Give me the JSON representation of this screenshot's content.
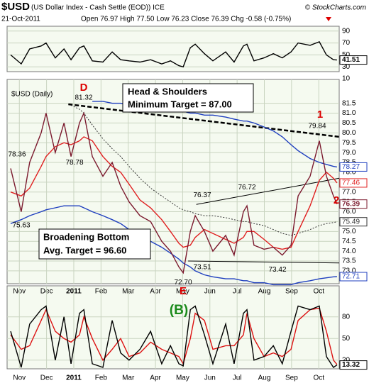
{
  "header": {
    "symbol": "$USD",
    "name": "(US Dollar Index - Cash Settle (EOD)) ICE",
    "credit": "© StockCharts.com",
    "date": "21-Oct-2011",
    "quote": "Open 76.97 High 77.50 Low 76.23 Close 76.39 Chg -0.58 (-0.75%)"
  },
  "chart_data": [
    {
      "type": "line",
      "xlim": [
        -0.45,
        11.75
      ],
      "ylim": [
        22,
        98
      ],
      "yticks": [
        90,
        70,
        50,
        30,
        10
      ],
      "grid": true,
      "x": [
        -0.32,
        0.07,
        0.38,
        0.8,
        0.98,
        1.32,
        1.64,
        1.9,
        2.21,
        2.37,
        2.68,
        3.07,
        3.41,
        3.72,
        4.03,
        4.43,
        4.82,
        5.23,
        5.55,
        5.86,
        6.02,
        6.28,
        6.46,
        6.8,
        7.11,
        7.58,
        7.89,
        8.23,
        8.36,
        8.62,
        8.99,
        9.33,
        9.66,
        9.98,
        10.24,
        10.68,
        11.02,
        11.28,
        11.54,
        11.67
      ],
      "series": [
        {
          "color": "#000000",
          "style": "solid",
          "end_label": true,
          "values": [
            50,
            35,
            60,
            65,
            70,
            45,
            60,
            42,
            62,
            65,
            40,
            38,
            55,
            42,
            40,
            38,
            42,
            35,
            40,
            32,
            30,
            62,
            68,
            52,
            40,
            55,
            38,
            65,
            68,
            40,
            45,
            52,
            45,
            55,
            70,
            66,
            72,
            50,
            42,
            41.51
          ]
        }
      ]
    },
    {
      "type": "line",
      "title": "$USD (Daily)",
      "xlim": [
        -0.45,
        11.75
      ],
      "ylim": [
        72.35,
        82.71
      ],
      "grid": true,
      "yticks": [
        {
          "value": 73,
          "label": "73.0"
        },
        73.5,
        {
          "value": 74,
          "label": "74.0"
        },
        74.5,
        {
          "value": 75,
          "label": "75.0"
        },
        75.5,
        {
          "value": 76,
          "label": "76.0"
        },
        76.5,
        {
          "value": 77,
          "label": "77.0"
        },
        77.5,
        {
          "value": 78,
          "label": "78.0"
        },
        78.5,
        {
          "value": 79,
          "label": "79.0"
        },
        79.5,
        {
          "value": 80,
          "label": "80.0"
        },
        80.5,
        {
          "value": 81,
          "label": "81.0"
        },
        81.5
      ],
      "xticks": [
        {
          "value": 0,
          "label": "Nov"
        },
        {
          "value": 1,
          "label": "Dec"
        },
        {
          "value": 2,
          "label": "2011"
        },
        {
          "value": 3,
          "label": "Feb"
        },
        {
          "value": 4,
          "label": "Mar"
        },
        {
          "value": 5,
          "label": "Apr"
        },
        {
          "value": 6,
          "label": "May"
        },
        {
          "value": 7,
          "label": "Jun"
        },
        {
          "value": 8,
          "label": "Jul"
        },
        {
          "value": 9,
          "label": "Aug"
        },
        {
          "value": 10,
          "label": "Sep"
        },
        {
          "value": 11,
          "label": "Oct"
        }
      ],
      "x": [
        -0.32,
        0.07,
        0.38,
        0.8,
        0.98,
        1.32,
        1.64,
        1.9,
        2.21,
        2.37,
        2.68,
        3.07,
        3.41,
        3.72,
        4.03,
        4.43,
        4.82,
        5.23,
        5.55,
        5.86,
        6.02,
        6.28,
        6.46,
        6.8,
        7.11,
        7.58,
        7.89,
        8.23,
        8.36,
        8.62,
        8.99,
        9.33,
        9.66,
        9.98,
        10.24,
        10.68,
        11.02,
        11.28,
        11.54,
        11.67
      ],
      "series": [
        {
          "color": "#1f3fbf",
          "style": "solid",
          "end_label": true,
          "values": [
            null,
            null,
            null,
            null,
            null,
            null,
            null,
            null,
            null,
            null,
            81.6,
            81.6,
            81.5,
            81.5,
            81.4,
            81.4,
            81.3,
            81.2,
            81.2,
            81.1,
            81.1,
            81.0,
            81.0,
            80.9,
            80.9,
            80.8,
            80.7,
            80.6,
            80.6,
            80.5,
            80.3,
            80.1,
            79.8,
            79.4,
            79.1,
            78.7,
            78.5,
            78.4,
            78.3,
            78.27
          ]
        },
        {
          "color": "#1f3fbf",
          "style": "solid",
          "end_label": true,
          "values": [
            75.4,
            75.6,
            75.8,
            76.0,
            76.1,
            76.2,
            76.3,
            76.3,
            76.3,
            76.2,
            76.0,
            75.8,
            75.6,
            75.4,
            75.1,
            74.8,
            74.5,
            74.2,
            73.9,
            73.6,
            73.4,
            73.2,
            73.0,
            72.8,
            72.7,
            72.6,
            72.6,
            72.5,
            72.5,
            72.4,
            72.4,
            72.3,
            72.3,
            72.3,
            72.4,
            72.5,
            72.6,
            72.65,
            72.7,
            72.71
          ]
        },
        {
          "color": "#333333",
          "style": "dotted",
          "end_label": true,
          "values": [
            null,
            null,
            null,
            null,
            null,
            null,
            null,
            81.4,
            81.2,
            81.0,
            80.4,
            79.7,
            79.2,
            78.8,
            78.3,
            77.7,
            77.2,
            76.8,
            76.5,
            76.2,
            76.1,
            76.0,
            75.9,
            75.8,
            75.8,
            75.7,
            75.6,
            75.5,
            75.5,
            75.4,
            75.3,
            75.1,
            74.9,
            74.8,
            74.9,
            75.1,
            75.3,
            75.4,
            75.45,
            75.49
          ]
        },
        {
          "color": "#e02020",
          "style": "solid",
          "end_label": true,
          "values": [
            77.0,
            76.8,
            77.2,
            78.3,
            78.8,
            79.3,
            79.5,
            79.4,
            79.6,
            79.8,
            79.6,
            78.8,
            78.3,
            78.0,
            77.4,
            76.6,
            76.2,
            75.6,
            75.0,
            74.4,
            74.2,
            74.3,
            74.7,
            75.1,
            74.9,
            74.6,
            74.4,
            74.7,
            75.0,
            75.0,
            74.6,
            74.2,
            74.1,
            74.2,
            75.0,
            76.3,
            77.6,
            78.0,
            77.7,
            77.46
          ]
        },
        {
          "color": "#7b1a2e",
          "style": "solid",
          "end_label": true,
          "values": [
            78.2,
            76.0,
            78.5,
            80.0,
            81.0,
            79.0,
            80.5,
            78.8,
            80.5,
            81.0,
            78.8,
            77.8,
            78.5,
            77.3,
            76.5,
            75.8,
            75.5,
            74.5,
            74.0,
            73.2,
            72.9,
            75.0,
            75.8,
            75.0,
            74.0,
            74.8,
            73.8,
            76.0,
            76.3,
            74.3,
            74.1,
            74.2,
            73.8,
            74.3,
            76.8,
            77.8,
            79.6,
            77.8,
            76.8,
            76.39
          ]
        }
      ],
      "trend_lines": [
        {
          "style": "dashed",
          "x": [
            1.8,
            11.75
          ],
          "values": [
            81.45,
            79.8
          ]
        },
        {
          "style": "solid",
          "x": [
            6.5,
            11.75
          ],
          "values": [
            76.37,
            77.7
          ]
        },
        {
          "style": "solid",
          "x": [
            6.2,
            11.75
          ],
          "values": [
            73.5,
            73.4
          ]
        }
      ],
      "point_labels": {
        "values": [
          78.36,
          75.63,
          78.78,
          81.32,
          76.37,
          76.72,
          73.51,
          73.42,
          72.7,
          79.84
        ],
        "value_labels": [
          "78.36",
          "75.63",
          "78.78",
          "81.32",
          "76.37",
          "76.72",
          "73.51",
          "73.42",
          "72.70",
          "79.84"
        ]
      },
      "annotations": {
        "letters": [
          "D",
          "E",
          "1",
          "2"
        ],
        "boxes": [
          "Head & Shoulders",
          "Minimum Target = 87.00",
          "Broadening Bottom",
          "Avg. Target = 96.60"
        ]
      }
    },
    {
      "type": "line",
      "xlim": [
        -0.45,
        11.75
      ],
      "ylim": [
        8,
        123
      ],
      "yticks": [
        80,
        50,
        20
      ],
      "grid": true,
      "xticks": [
        {
          "value": 0,
          "label": "Nov"
        },
        {
          "value": 1,
          "label": "Dec"
        },
        {
          "value": 2,
          "label": "2011"
        },
        {
          "value": 3,
          "label": "Feb"
        },
        {
          "value": 4,
          "label": "Mar"
        },
        {
          "value": 5,
          "label": "Apr"
        },
        {
          "value": 6,
          "label": "May"
        },
        {
          "value": 7,
          "label": "Jun"
        },
        {
          "value": 8,
          "label": "Jul"
        },
        {
          "value": 9,
          "label": "Aug"
        },
        {
          "value": 10,
          "label": "Sep"
        },
        {
          "value": 11,
          "label": "Oct"
        }
      ],
      "x": [
        -0.32,
        0.07,
        0.38,
        0.8,
        0.98,
        1.32,
        1.64,
        1.9,
        2.21,
        2.37,
        2.68,
        3.07,
        3.41,
        3.72,
        4.03,
        4.43,
        4.82,
        5.23,
        5.55,
        5.86,
        6.02,
        6.28,
        6.46,
        6.8,
        7.11,
        7.58,
        7.89,
        8.23,
        8.36,
        8.62,
        8.99,
        9.33,
        9.66,
        9.98,
        10.24,
        10.68,
        11.02,
        11.28,
        11.54,
        11.67
      ],
      "series": [
        {
          "color": "#dd1111",
          "style": "solid",
          "end_label": false,
          "values": [
            55,
            35,
            40,
            75,
            90,
            60,
            50,
            45,
            55,
            80,
            50,
            20,
            35,
            50,
            25,
            30,
            45,
            35,
            30,
            25,
            15,
            50,
            85,
            75,
            35,
            40,
            40,
            55,
            85,
            50,
            25,
            30,
            25,
            35,
            75,
            90,
            92,
            60,
            20,
            14
          ]
        },
        {
          "color": "#000000",
          "style": "solid",
          "end_label": true,
          "values": [
            60,
            10,
            70,
            90,
            95,
            20,
            80,
            15,
            85,
            90,
            15,
            10,
            75,
            30,
            20,
            35,
            60,
            15,
            40,
            15,
            12,
            90,
            95,
            55,
            15,
            70,
            15,
            85,
            90,
            20,
            25,
            40,
            15,
            60,
            95,
            90,
            95,
            25,
            10,
            13.32
          ]
        }
      ],
      "annotations": {
        "letters": [
          "(B)"
        ]
      }
    }
  ]
}
